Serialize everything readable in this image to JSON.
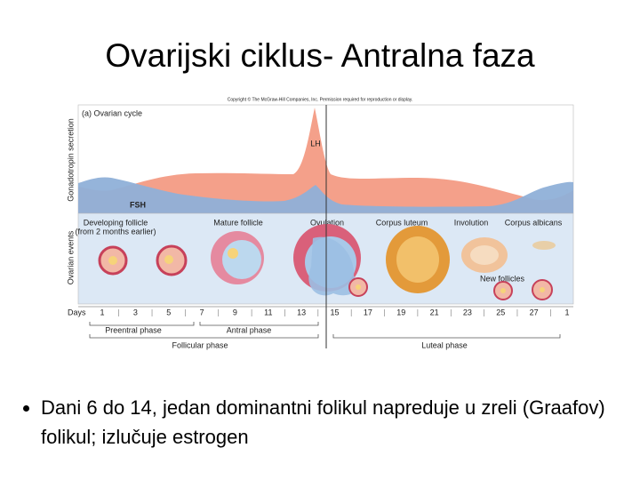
{
  "title": "Ovarijski ciklus- Antralna faza",
  "figure": {
    "copyright": "Copyright © The McGraw-Hill Companies, Inc. Permission required for reproduction or display.",
    "panel_title": "(a) Ovarian cycle",
    "y_labels": [
      "Gonadotropin secretion",
      "Ovarian events"
    ],
    "curve_labels": [
      "LH",
      "FSH"
    ],
    "stage_labels": [
      "Developing follicle",
      "(from 2 months earlier)",
      "Mature follicle",
      "Ovulation",
      "Corpus luteum",
      "Involution",
      "Corpus albicans",
      "New follicles"
    ],
    "days_label": "Days",
    "days": [
      "1",
      "3",
      "5",
      "7",
      "9",
      "11",
      "13",
      "15",
      "17",
      "19",
      "21",
      "23",
      "25",
      "27",
      "1"
    ],
    "phases": [
      "Preentral phase",
      "Antral phase",
      "Follicular phase",
      "Luteal phase"
    ]
  },
  "bullets": [
    "Dani 6 do 14, jedan dominantni folikul napreduje u zreli (Graafov) folikul; izlučuje estrogen"
  ]
}
